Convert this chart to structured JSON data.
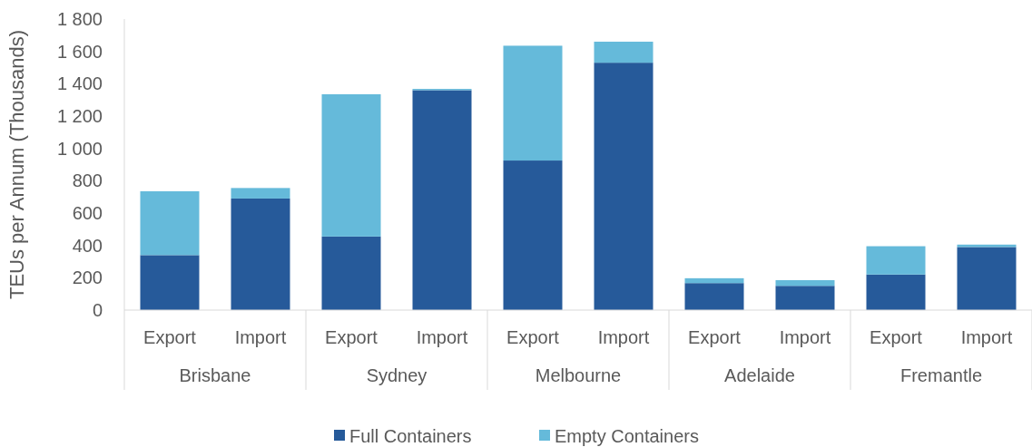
{
  "chart_data": {
    "type": "bar",
    "stacked": true,
    "ylabel": "TEUs per Annum (Thousands)",
    "categories": [
      "Export",
      "Import",
      "Export",
      "Import",
      "Export",
      "Import",
      "Export",
      "Import",
      "Export",
      "Import"
    ],
    "annotations": [
      "Brisbane",
      "Sydney",
      "Melbourne",
      "Adelaide",
      "Fremantle"
    ],
    "series": [
      {
        "name": "Full Containers",
        "color": "#265a9a",
        "values": [
          340,
          690,
          455,
          1360,
          925,
          1530,
          167,
          150,
          220,
          390
        ]
      },
      {
        "name": "Empty Containers",
        "color": "#65bada",
        "values": [
          395,
          65,
          880,
          8,
          710,
          130,
          30,
          35,
          175,
          15
        ]
      }
    ],
    "ylim": [
      0,
      1800
    ],
    "yticks": [
      0,
      200,
      400,
      600,
      800,
      {
        "value": 1000,
        "label": "1 000"
      },
      {
        "value": 1200,
        "label": "1 200"
      },
      {
        "value": 1400,
        "label": "1 400"
      },
      {
        "value": 1600,
        "label": "1 600"
      },
      {
        "value": 1800,
        "label": "1 800"
      }
    ],
    "grid": false,
    "legend": "bottom"
  }
}
